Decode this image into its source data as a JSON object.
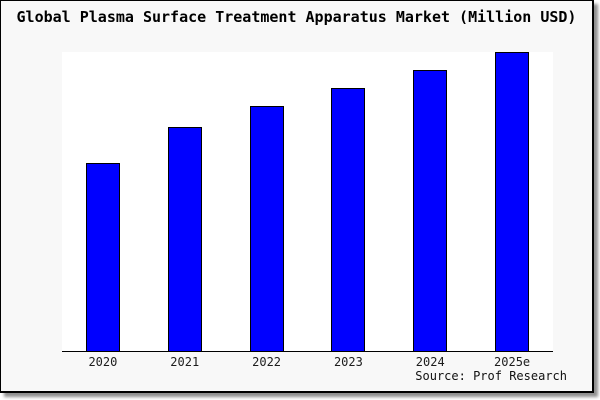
{
  "title": "Global Plasma Surface Treatment Apparatus Market (Million USD)",
  "source_note": "Source: Prof Research",
  "colors": {
    "background": "#f8f8f8",
    "plot_background": "#ffffff",
    "bar_fill": "#0000ff",
    "bar_border": "#000000",
    "axis": "#000000",
    "frame_border": "#000000",
    "shadow": "#8f8f8f",
    "text": "#111111"
  },
  "chart_data": {
    "type": "bar",
    "title": "Global Plasma Surface Treatment Apparatus Market (Million USD)",
    "categories": [
      "2020",
      "2021",
      "2022",
      "2023",
      "2024",
      "2025e"
    ],
    "values": [
      63,
      75,
      82,
      88,
      94,
      100
    ],
    "unit": "relative scale (y-axis not labeled in figure; values estimated as % of tallest bar)",
    "xlabel": "",
    "ylabel": "",
    "ylim": [
      0,
      100
    ],
    "grid": false,
    "legend": false,
    "y_axis_shown": false,
    "x_axis_shown": true,
    "annotations": [
      "Source: Prof Research"
    ]
  }
}
